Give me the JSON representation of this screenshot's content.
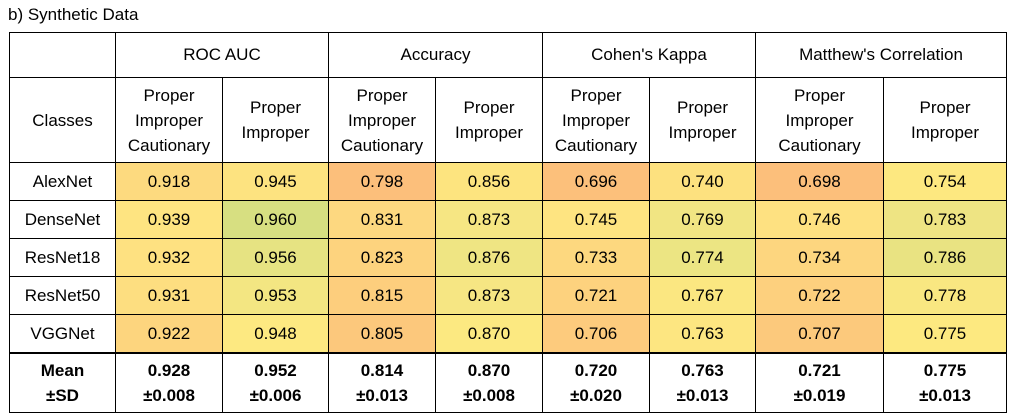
{
  "caption": "b) Synthetic Data",
  "header": {
    "classes_label": "Classes",
    "groups": [
      "ROC AUC",
      "Accuracy",
      "Cohen's Kappa",
      "Matthew's Correlation"
    ],
    "sub_labels": [
      [
        "Proper",
        "Improper",
        "Cautionary"
      ],
      [
        "Proper",
        "Improper"
      ]
    ]
  },
  "rows": [
    {
      "name": "AlexNet",
      "values": [
        "0.918",
        "0.945",
        "0.798",
        "0.856",
        "0.696",
        "0.740",
        "0.698",
        "0.754"
      ]
    },
    {
      "name": "DenseNet",
      "values": [
        "0.939",
        "0.960",
        "0.831",
        "0.873",
        "0.745",
        "0.769",
        "0.746",
        "0.783"
      ]
    },
    {
      "name": "ResNet18",
      "values": [
        "0.932",
        "0.956",
        "0.823",
        "0.876",
        "0.733",
        "0.774",
        "0.734",
        "0.786"
      ]
    },
    {
      "name": "ResNet50",
      "values": [
        "0.931",
        "0.953",
        "0.815",
        "0.873",
        "0.721",
        "0.767",
        "0.722",
        "0.778"
      ]
    },
    {
      "name": "VGGNet",
      "values": [
        "0.922",
        "0.948",
        "0.805",
        "0.870",
        "0.706",
        "0.763",
        "0.707",
        "0.775"
      ]
    }
  ],
  "cell_colors": [
    [
      "#fdda7f",
      "#fde380",
      "#fcbf7b",
      "#fde47f",
      "#fcc07b",
      "#fde17f",
      "#fcbf7b",
      "#fde880"
    ],
    [
      "#fee481",
      "#d7df81",
      "#fdd880",
      "#f6e683",
      "#fee481",
      "#f1e583",
      "#fee181",
      "#eee483"
    ],
    [
      "#fee181",
      "#e6e382",
      "#fdd37e",
      "#efe583",
      "#fdd87f",
      "#ece583",
      "#fdd67f",
      "#e9e382"
    ],
    [
      "#fdde80",
      "#f3e682",
      "#fdce7d",
      "#f6e683",
      "#fdd27e",
      "#fbe781",
      "#fdd07e",
      "#f9e781"
    ],
    [
      "#fdd57e",
      "#fde981",
      "#fcc87c",
      "#fce981",
      "#fdcb7d",
      "#fde681",
      "#fcc97c",
      "#fde980"
    ]
  ],
  "mean_row": {
    "label": [
      "Mean",
      "±SD"
    ],
    "values": [
      [
        "0.928",
        "±0.008"
      ],
      [
        "0.952",
        "±0.006"
      ],
      [
        "0.814",
        "±0.013"
      ],
      [
        "0.870",
        "±0.008"
      ],
      [
        "0.720",
        "±0.020"
      ],
      [
        "0.763",
        "±0.013"
      ],
      [
        "0.721",
        "±0.019"
      ],
      [
        "0.775",
        "±0.013"
      ]
    ]
  }
}
